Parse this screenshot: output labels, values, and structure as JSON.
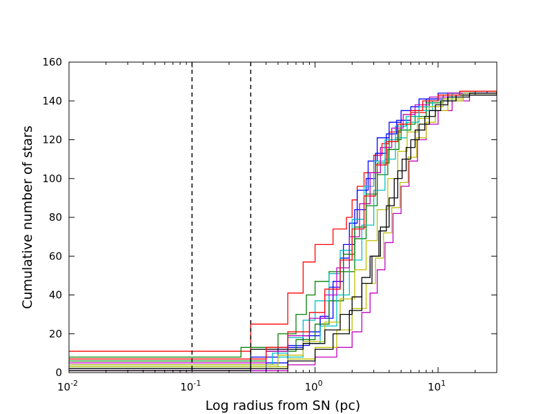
{
  "chart_data": {
    "type": "line",
    "title": "",
    "xlabel": "Log radius from SN (pc)",
    "ylabel": "Cumulative number of stars",
    "xscale": "log",
    "xlim": [
      0.01,
      30
    ],
    "ylim": [
      0,
      160
    ],
    "grid": false,
    "legend": "none",
    "xticks": [
      {
        "value": 0.01,
        "base": "10",
        "exp": "-2"
      },
      {
        "value": 0.1,
        "base": "10",
        "exp": "-1"
      },
      {
        "value": 1,
        "base": "10",
        "exp": "0"
      },
      {
        "value": 10,
        "base": "10",
        "exp": "1"
      }
    ],
    "yticks": [
      0,
      20,
      40,
      60,
      80,
      100,
      120,
      140,
      160
    ],
    "vlines": [
      0.1,
      0.3
    ],
    "series": [
      {
        "color": "#ff0000",
        "points": [
          [
            0.01,
            11
          ],
          [
            0.3,
            11
          ],
          [
            0.3,
            25
          ],
          [
            0.6,
            25
          ],
          [
            0.6,
            41
          ],
          [
            0.8,
            41
          ],
          [
            0.8,
            57
          ],
          [
            1.0,
            57
          ],
          [
            1.0,
            66
          ],
          [
            1.2,
            66
          ],
          [
            1.4,
            74
          ],
          [
            1.6,
            74
          ],
          [
            1.8,
            80
          ],
          [
            2.0,
            89
          ],
          [
            2.2,
            96
          ],
          [
            2.5,
            103
          ],
          [
            3.0,
            112
          ],
          [
            3.5,
            118
          ],
          [
            4.0,
            124
          ],
          [
            5.0,
            130
          ],
          [
            6.0,
            134
          ],
          [
            8.0,
            140
          ],
          [
            10.0,
            143
          ],
          [
            15.0,
            145
          ],
          [
            30.0,
            145
          ]
        ]
      },
      {
        "color": "#0000ff",
        "points": [
          [
            0.01,
            1
          ],
          [
            0.4,
            1
          ],
          [
            0.4,
            5
          ],
          [
            0.6,
            14
          ],
          [
            0.9,
            21
          ],
          [
            1.1,
            29
          ],
          [
            1.3,
            44
          ],
          [
            1.6,
            59
          ],
          [
            1.9,
            77
          ],
          [
            2.2,
            94
          ],
          [
            2.7,
            109
          ],
          [
            3.2,
            121
          ],
          [
            4.0,
            129
          ],
          [
            5.0,
            135
          ],
          [
            7.0,
            141
          ],
          [
            10.0,
            144
          ],
          [
            20.0,
            145
          ],
          [
            30.0,
            145
          ]
        ]
      },
      {
        "color": "#0000ff",
        "points": [
          [
            0.01,
            2
          ],
          [
            0.3,
            2
          ],
          [
            0.3,
            8
          ],
          [
            0.5,
            13
          ],
          [
            0.8,
            19
          ],
          [
            1.1,
            28
          ],
          [
            1.4,
            47
          ],
          [
            1.7,
            66
          ],
          [
            2.1,
            84
          ],
          [
            2.6,
            100
          ],
          [
            3.1,
            113
          ],
          [
            3.8,
            123
          ],
          [
            4.6,
            130
          ],
          [
            6.0,
            137
          ],
          [
            8.0,
            141
          ],
          [
            12.0,
            144
          ],
          [
            25.0,
            145
          ],
          [
            30.0,
            145
          ]
        ]
      },
      {
        "color": "#008000",
        "points": [
          [
            0.01,
            8
          ],
          [
            0.2,
            8
          ],
          [
            0.25,
            13
          ],
          [
            0.5,
            20
          ],
          [
            0.7,
            30
          ],
          [
            0.85,
            40
          ],
          [
            1.0,
            47
          ],
          [
            1.3,
            52
          ],
          [
            1.7,
            61
          ],
          [
            2.1,
            75
          ],
          [
            2.6,
            92
          ],
          [
            3.2,
            108
          ],
          [
            4.0,
            120
          ],
          [
            5.0,
            128
          ],
          [
            6.5,
            135
          ],
          [
            8.5,
            140
          ],
          [
            12.0,
            144
          ],
          [
            20.0,
            145
          ],
          [
            30.0,
            145
          ]
        ]
      },
      {
        "color": "#008000",
        "points": [
          [
            0.01,
            6
          ],
          [
            0.3,
            6
          ],
          [
            0.4,
            11
          ],
          [
            0.7,
            17
          ],
          [
            1.0,
            25
          ],
          [
            1.3,
            37
          ],
          [
            1.7,
            52
          ],
          [
            2.1,
            69
          ],
          [
            2.6,
            86
          ],
          [
            3.2,
            102
          ],
          [
            3.9,
            115
          ],
          [
            4.8,
            125
          ],
          [
            6.0,
            132
          ],
          [
            8.0,
            139
          ],
          [
            11.0,
            143
          ],
          [
            20.0,
            145
          ],
          [
            30.0,
            145
          ]
        ]
      },
      {
        "color": "#00bfbf",
        "points": [
          [
            0.01,
            4
          ],
          [
            0.35,
            4
          ],
          [
            0.45,
            10
          ],
          [
            0.6,
            18
          ],
          [
            0.8,
            27
          ],
          [
            1.0,
            37
          ],
          [
            1.3,
            51
          ],
          [
            1.6,
            63
          ],
          [
            2.0,
            79
          ],
          [
            2.5,
            96
          ],
          [
            3.0,
            109
          ],
          [
            3.7,
            120
          ],
          [
            4.5,
            127
          ],
          [
            5.5,
            132
          ],
          [
            7.0,
            137
          ],
          [
            9.0,
            140
          ],
          [
            13.0,
            143
          ],
          [
            30.0,
            144
          ]
        ]
      },
      {
        "color": "#00bfbf",
        "points": [
          [
            0.01,
            3
          ],
          [
            0.4,
            3
          ],
          [
            0.5,
            8
          ],
          [
            0.8,
            15
          ],
          [
            1.1,
            24
          ],
          [
            1.5,
            40
          ],
          [
            1.9,
            58
          ],
          [
            2.4,
            76
          ],
          [
            3.0,
            94
          ],
          [
            3.7,
            110
          ],
          [
            4.5,
            121
          ],
          [
            5.6,
            129
          ],
          [
            7.0,
            135
          ],
          [
            9.0,
            140
          ],
          [
            13.0,
            144
          ],
          [
            30.0,
            145
          ]
        ]
      },
      {
        "color": "#bf00bf",
        "points": [
          [
            0.01,
            1
          ],
          [
            0.45,
            1
          ],
          [
            0.6,
            4
          ],
          [
            1.0,
            8
          ],
          [
            1.5,
            13
          ],
          [
            2.0,
            21
          ],
          [
            2.4,
            31
          ],
          [
            2.8,
            41
          ],
          [
            3.2,
            53
          ],
          [
            3.7,
            67
          ],
          [
            4.3,
            82
          ],
          [
            5.0,
            96
          ],
          [
            5.8,
            109
          ],
          [
            6.8,
            120
          ],
          [
            8.0,
            128
          ],
          [
            10.0,
            135
          ],
          [
            13.0,
            140
          ],
          [
            18.0,
            143
          ],
          [
            30.0,
            145
          ]
        ]
      },
      {
        "color": "#bf00bf",
        "points": [
          [
            0.01,
            5
          ],
          [
            0.3,
            5
          ],
          [
            0.4,
            11
          ],
          [
            0.6,
            19
          ],
          [
            0.9,
            28
          ],
          [
            1.2,
            40
          ],
          [
            1.5,
            54
          ],
          [
            1.9,
            70
          ],
          [
            2.3,
            87
          ],
          [
            2.8,
            103
          ],
          [
            3.4,
            116
          ],
          [
            4.2,
            126
          ],
          [
            5.2,
            133
          ],
          [
            6.5,
            138
          ],
          [
            8.5,
            142
          ],
          [
            12.0,
            144
          ],
          [
            30.0,
            145
          ]
        ]
      },
      {
        "color": "#bfbf00",
        "points": [
          [
            0.01,
            3
          ],
          [
            0.4,
            3
          ],
          [
            0.6,
            7
          ],
          [
            1.0,
            13
          ],
          [
            1.5,
            22
          ],
          [
            2.0,
            33
          ],
          [
            2.6,
            46
          ],
          [
            3.1,
            59
          ],
          [
            3.6,
            72
          ],
          [
            4.2,
            85
          ],
          [
            4.9,
            98
          ],
          [
            5.7,
            111
          ],
          [
            6.7,
            121
          ],
          [
            8.0,
            129
          ],
          [
            9.5,
            135
          ],
          [
            12.0,
            140
          ],
          [
            16.0,
            143
          ],
          [
            30.0,
            145
          ]
        ]
      },
      {
        "color": "#bfbf00",
        "points": [
          [
            0.01,
            4
          ],
          [
            0.35,
            4
          ],
          [
            0.5,
            9
          ],
          [
            0.8,
            16
          ],
          [
            1.2,
            26
          ],
          [
            1.6,
            38
          ],
          [
            2.1,
            53
          ],
          [
            2.6,
            68
          ],
          [
            3.2,
            84
          ],
          [
            3.9,
            100
          ],
          [
            4.7,
            114
          ],
          [
            5.6,
            124
          ],
          [
            6.8,
            131
          ],
          [
            8.5,
            137
          ],
          [
            11.0,
            141
          ],
          [
            16.0,
            144
          ],
          [
            30.0,
            145
          ]
        ]
      },
      {
        "color": "#000000",
        "points": [
          [
            0.01,
            1
          ],
          [
            0.25,
            1
          ],
          [
            0.3,
            12
          ],
          [
            0.5,
            12
          ],
          [
            0.8,
            15
          ],
          [
            1.2,
            22
          ],
          [
            1.6,
            30
          ],
          [
            2.0,
            39
          ],
          [
            2.4,
            49
          ],
          [
            2.8,
            60
          ],
          [
            3.3,
            73
          ],
          [
            3.8,
            86
          ],
          [
            4.4,
            100
          ],
          [
            5.1,
            110
          ],
          [
            6.0,
            120
          ],
          [
            7.0,
            128
          ],
          [
            8.5,
            135
          ],
          [
            10.5,
            140
          ],
          [
            14.0,
            143
          ],
          [
            30.0,
            145
          ]
        ]
      },
      {
        "color": "#000000",
        "points": [
          [
            0.01,
            2
          ],
          [
            0.4,
            2
          ],
          [
            0.6,
            6
          ],
          [
            1.0,
            12
          ],
          [
            1.4,
            20
          ],
          [
            1.9,
            32
          ],
          [
            2.4,
            46
          ],
          [
            2.9,
            60
          ],
          [
            3.4,
            75
          ],
          [
            4.0,
            90
          ],
          [
            4.7,
            104
          ],
          [
            5.5,
            116
          ],
          [
            6.5,
            125
          ],
          [
            7.8,
            132
          ],
          [
            9.5,
            138
          ],
          [
            12.0,
            142
          ],
          [
            18.0,
            144
          ],
          [
            30.0,
            145
          ]
        ]
      },
      {
        "color": "#ff0000",
        "points": [
          [
            0.01,
            7
          ],
          [
            0.3,
            7
          ],
          [
            0.4,
            13
          ],
          [
            0.6,
            21
          ],
          [
            0.9,
            31
          ],
          [
            1.2,
            43
          ],
          [
            1.6,
            58
          ],
          [
            2.0,
            74
          ],
          [
            2.5,
            91
          ],
          [
            3.1,
            107
          ],
          [
            3.8,
            119
          ],
          [
            4.7,
            128
          ],
          [
            6.0,
            135
          ],
          [
            7.5,
            140
          ],
          [
            10.0,
            143
          ],
          [
            15.0,
            145
          ],
          [
            30.0,
            145
          ]
        ]
      }
    ]
  }
}
